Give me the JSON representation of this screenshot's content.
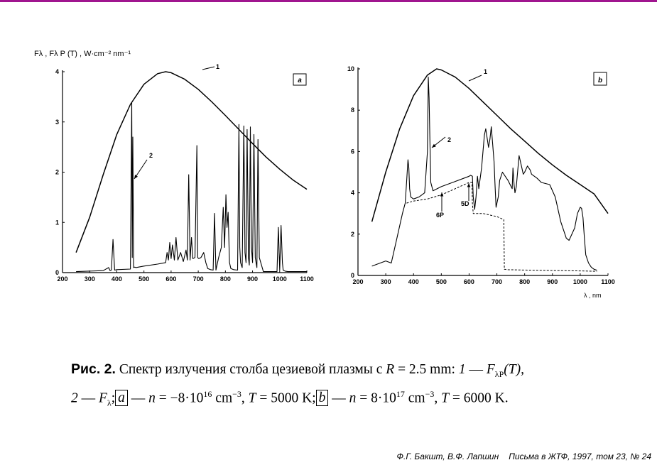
{
  "colors": {
    "accent_bar": "#a0158f",
    "line": "#000000"
  },
  "ylabel_left": "Fλ , Fλ P (T) ,  W·cm⁻² nm⁻¹",
  "xlabel_right": "λ , nm",
  "chart_data": [
    {
      "type": "line",
      "panel_label": "a",
      "xlim": [
        200,
        1100
      ],
      "ylim": [
        0,
        4
      ],
      "xticks": [
        200,
        300,
        400,
        500,
        600,
        700,
        800,
        900,
        1000,
        1100
      ],
      "yticks": [
        0,
        1,
        2,
        3,
        4
      ],
      "series": [
        {
          "name": "1",
          "x": [
            250,
            300,
            350,
            400,
            450,
            500,
            550,
            580,
            600,
            650,
            700,
            750,
            800,
            850,
            900,
            950,
            1000,
            1050,
            1100
          ],
          "y": [
            0.4,
            1.1,
            1.95,
            2.75,
            3.35,
            3.75,
            3.96,
            4.0,
            3.98,
            3.85,
            3.65,
            3.4,
            3.13,
            2.85,
            2.57,
            2.3,
            2.06,
            1.84,
            1.66
          ]
        },
        {
          "name": "2",
          "x": [
            250,
            350,
            370,
            375,
            380,
            386,
            392,
            400,
            450,
            455,
            457,
            459,
            462,
            466,
            470,
            500,
            550,
            580,
            585,
            590,
            595,
            600,
            605,
            612,
            618,
            625,
            635,
            645,
            655,
            660,
            665,
            670,
            675,
            680,
            688,
            695,
            698,
            702,
            710,
            720,
            728,
            735,
            745,
            755,
            760,
            765,
            775,
            785,
            792,
            797,
            802,
            806,
            810,
            815,
            820,
            830,
            845,
            850,
            853,
            856,
            862,
            868,
            872,
            876,
            880,
            885,
            888,
            892,
            896,
            900,
            905,
            910,
            916,
            920,
            925,
            940,
            990,
            995,
            1000,
            1005,
            1010,
            1013,
            1016,
            1020,
            1030,
            1100
          ],
          "y": [
            0.02,
            0.04,
            0.1,
            0.04,
            0.05,
            0.66,
            0.05,
            0.06,
            0.07,
            3.38,
            0.3,
            2.7,
            0.1,
            0.11,
            0.1,
            0.13,
            0.17,
            0.2,
            0.4,
            0.25,
            0.6,
            0.28,
            0.55,
            0.25,
            0.7,
            0.25,
            0.4,
            0.22,
            0.45,
            0.25,
            1.95,
            0.25,
            0.7,
            0.28,
            0.3,
            2.53,
            0.3,
            0.28,
            0.3,
            0.4,
            0.2,
            0.08,
            0.06,
            0.05,
            1.18,
            0.05,
            0.3,
            0.5,
            1.3,
            0.5,
            1.55,
            0.9,
            1.2,
            0.2,
            0.08,
            0.06,
            0.05,
            2.95,
            0.5,
            0.2,
            0.1,
            2.92,
            0.4,
            0.2,
            2.85,
            0.3,
            0.15,
            2.9,
            0.5,
            0.2,
            2.75,
            0.3,
            0.1,
            2.65,
            0.3,
            0.02,
            0.02,
            0.9,
            0.05,
            0.94,
            0.2,
            0.05,
            0.04,
            0.03,
            0.02,
            0.02
          ]
        }
      ],
      "annotations": [
        {
          "text": "1"
        },
        {
          "text": "2"
        }
      ]
    },
    {
      "type": "line",
      "panel_label": "b",
      "xlim": [
        200,
        1100
      ],
      "ylim": [
        0,
        10
      ],
      "xticks": [
        200,
        300,
        400,
        500,
        600,
        700,
        800,
        900,
        1000,
        1100
      ],
      "yticks": [
        0,
        2,
        4,
        6,
        8,
        10
      ],
      "xlabel": "λ , nm",
      "series": [
        {
          "name": "1",
          "x": [
            250,
            300,
            350,
            400,
            450,
            483,
            500,
            550,
            600,
            650,
            700,
            750,
            800,
            850,
            900,
            950,
            1000,
            1050,
            1100
          ],
          "y": [
            2.6,
            5.0,
            7.1,
            8.7,
            9.7,
            10.0,
            9.95,
            9.6,
            9.05,
            8.4,
            7.75,
            7.1,
            6.5,
            5.9,
            5.35,
            4.85,
            4.4,
            3.95,
            3.0
          ]
        },
        {
          "name": "2",
          "x": [
            250,
            280,
            300,
            320,
            340,
            360,
            370,
            375,
            380,
            383,
            386,
            390,
            400,
            420,
            440,
            450,
            453,
            456,
            459,
            462,
            470,
            500,
            550,
            600,
            605,
            612,
            615,
            620,
            625,
            630,
            635,
            645,
            655,
            660,
            670,
            675,
            680,
            690,
            693,
            697,
            705,
            710,
            720,
            730,
            740,
            755,
            758,
            762,
            765,
            770,
            780,
            790,
            795,
            800,
            810,
            820,
            825,
            835,
            845,
            860,
            890,
            910,
            930,
            950,
            960,
            980,
            990,
            1000,
            1005,
            1010,
            1015,
            1020,
            1030,
            1040,
            1050,
            1060
          ],
          "y": [
            0.45,
            0.6,
            0.7,
            0.6,
            1.8,
            3.0,
            3.5,
            4.5,
            5.6,
            5.2,
            4.2,
            3.8,
            3.7,
            3.8,
            4.0,
            6.0,
            9.6,
            8.6,
            6.5,
            4.5,
            4.1,
            4.3,
            4.55,
            4.8,
            4.85,
            4.8,
            3.8,
            3.2,
            3.8,
            4.8,
            4.2,
            5.2,
            6.8,
            7.1,
            6.2,
            6.6,
            7.2,
            5.5,
            4.5,
            3.3,
            3.8,
            4.6,
            5.0,
            4.8,
            4.6,
            4.2,
            5.2,
            4.4,
            4.0,
            4.3,
            5.8,
            5.2,
            4.9,
            5.0,
            5.3,
            5.1,
            4.9,
            4.8,
            4.7,
            4.5,
            4.4,
            3.8,
            2.6,
            1.8,
            1.7,
            2.3,
            3.0,
            3.3,
            3.25,
            2.8,
            1.8,
            1.0,
            0.6,
            0.4,
            0.3,
            0.25
          ]
        },
        {
          "name": "dashed",
          "x": [
            375,
            400,
            450,
            500,
            550,
            600,
            610,
            612,
            615,
            650,
            700,
            725,
            727,
            740,
            800,
            900,
            1000,
            1060
          ],
          "y": [
            3.5,
            3.6,
            3.7,
            3.9,
            4.2,
            4.5,
            4.5,
            3.5,
            3.0,
            3.0,
            2.85,
            2.7,
            0.3,
            0.28,
            0.26,
            0.24,
            0.22,
            0.2
          ]
        }
      ],
      "annotations": [
        {
          "text": "1"
        },
        {
          "text": "2"
        },
        {
          "text": "6P"
        },
        {
          "text": "5D"
        }
      ]
    }
  ],
  "caption": {
    "fig": "Рис. 2.",
    "line1_text": " Спектр излучения столба цезиевой плазмы с ",
    "R": "R",
    "line1_math": " = 2.5 mm: ",
    "one": "1",
    "dash1": " — ",
    "F1": "F",
    "F1_sub": "λP",
    "F1_arg": "(T),",
    "two": "2",
    "dash2": " — ",
    "F2": "F",
    "F2_sub": "λ",
    "sep": ";",
    "a": "a",
    "a_rest1": " — ",
    "n1": "n",
    "a_rest2": " = −8·10",
    "a_exp": "16",
    "a_rest3": " cm",
    "a_exp2": "−3",
    "a_rest4": ", ",
    "T1": "T",
    "a_rest5": " = 5000 K;",
    "b": "b",
    "b_rest1": " — ",
    "n2": "n",
    "b_rest2": " = 8·10",
    "b_exp": "17",
    "b_rest3": " cm",
    "b_exp2": "−3",
    "b_rest4": ", ",
    "T2": "T",
    "b_rest5": " = 6000 K."
  },
  "footer": {
    "authors": "Ф.Г. Бакшт, В.Ф. Лапшин",
    "journal": "Письма в ЖТФ, 1997, том 23, № 24"
  }
}
